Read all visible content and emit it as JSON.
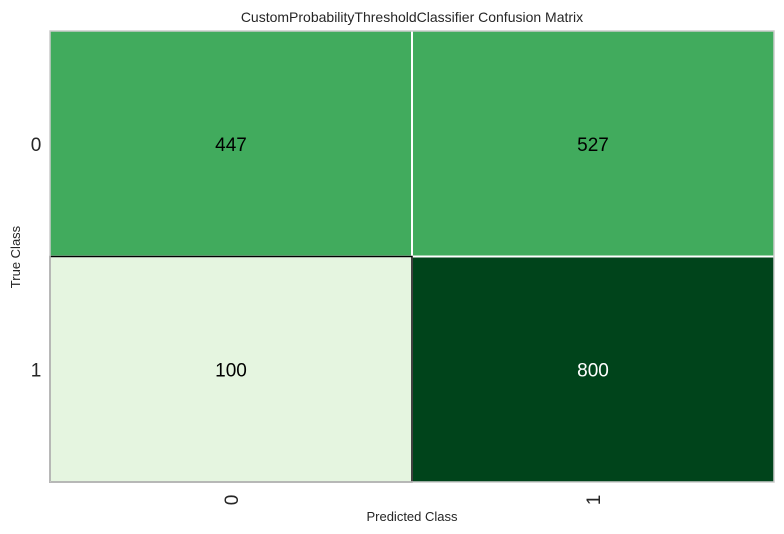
{
  "chart_data": {
    "type": "heatmap",
    "title": "CustomProbabilityThresholdClassifier Confusion Matrix",
    "xlabel": "Predicted Class",
    "ylabel": "True Class",
    "x_categories": [
      "0",
      "1"
    ],
    "y_categories": [
      "0",
      "1"
    ],
    "values": [
      [
        447,
        527
      ],
      [
        100,
        800
      ]
    ],
    "colormap": "Greens",
    "cell_colors": [
      [
        "#41ab5d",
        "#41ab5d"
      ],
      [
        "#e5f5e0",
        "#00441b"
      ]
    ],
    "label_colors": [
      [
        "#000000",
        "#000000"
      ],
      [
        "#000000",
        "#ffffff"
      ]
    ]
  }
}
